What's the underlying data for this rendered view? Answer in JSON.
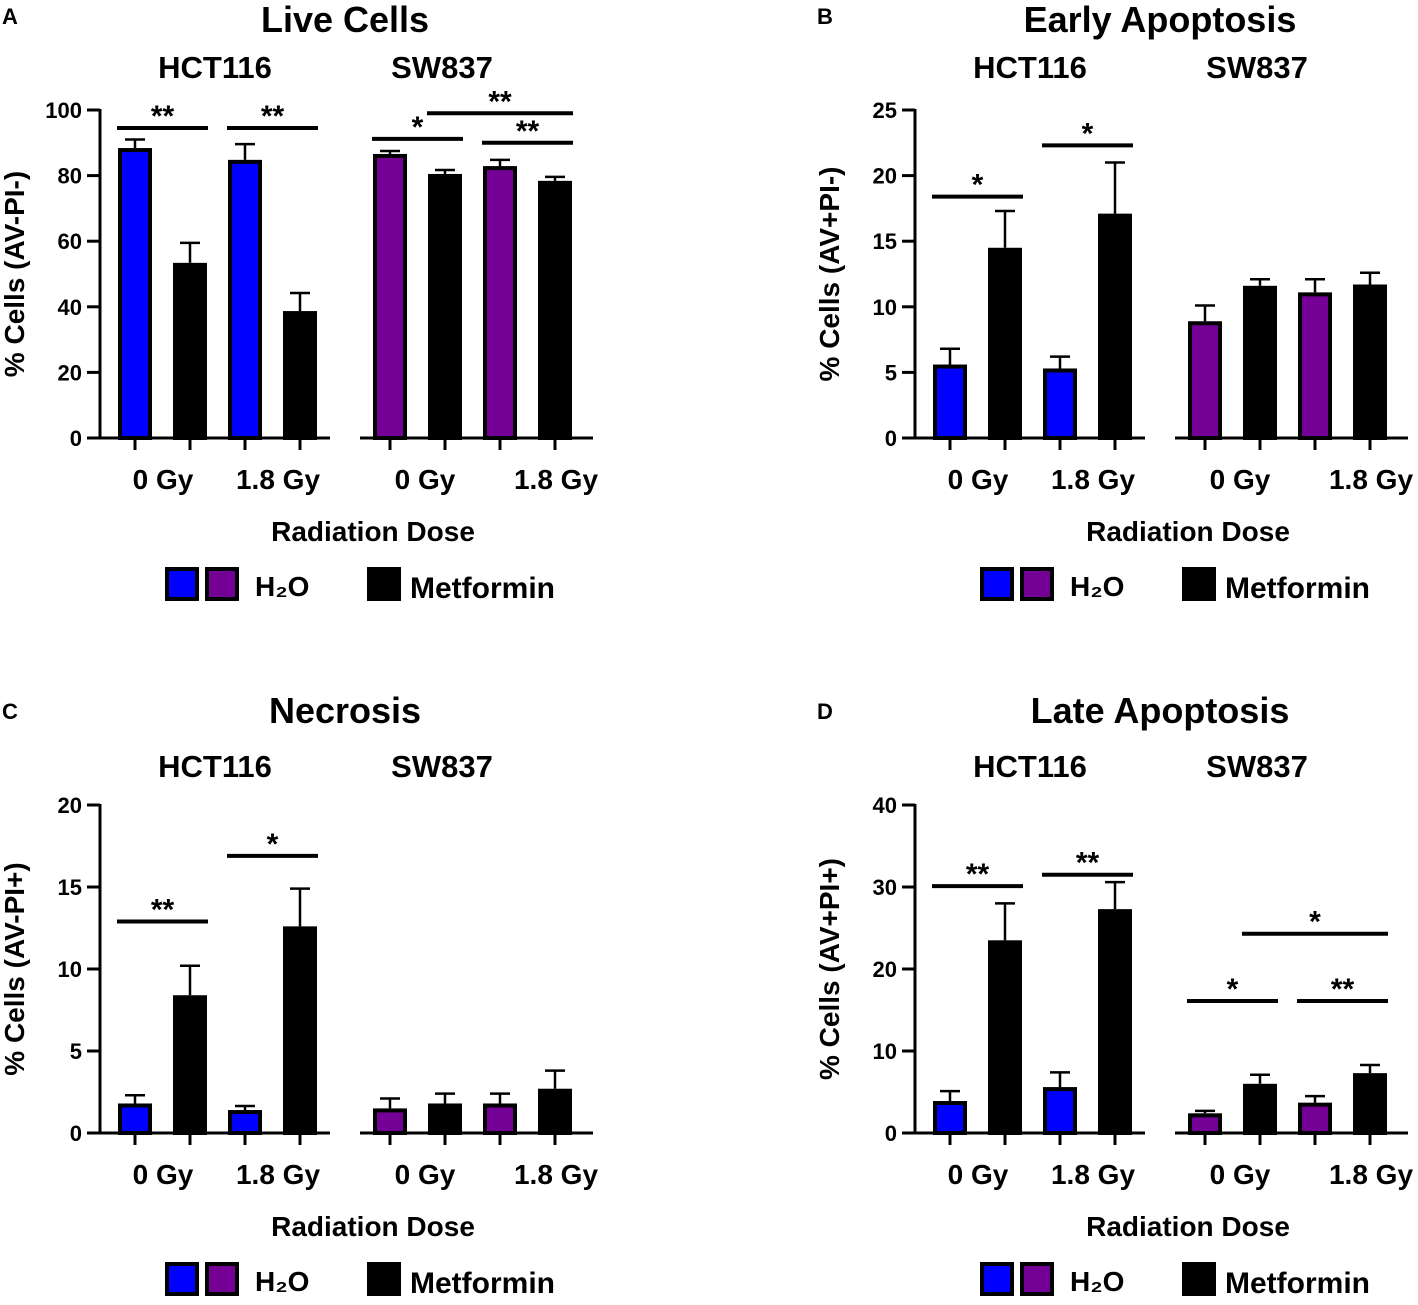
{
  "colors": {
    "hct_h2o": "#0000FF",
    "sw_h2o": "#740096",
    "metformin": "#000000"
  },
  "legend": {
    "h2o": "H₂O",
    "metformin": "Metformin"
  },
  "xlabel": "Radiation Dose",
  "groups": [
    "HCT116",
    "SW837"
  ],
  "dose_labels": [
    "0 Gy",
    "1.8 Gy",
    "0 Gy",
    "1.8 Gy"
  ],
  "chart_data": [
    {
      "type": "bar",
      "panel": "A",
      "title": "Live Cells",
      "ylabel": "% Cells (AV-PI-)",
      "xlabel": "Radiation Dose",
      "ylim": [
        0,
        100
      ],
      "yticks": [
        0,
        20,
        40,
        60,
        80,
        100
      ],
      "categories": [
        "HCT116 0 Gy H2O",
        "HCT116 0 Gy Metformin",
        "HCT116 1.8 Gy H2O",
        "HCT116 1.8 Gy Metformin",
        "SW837 0 Gy H2O",
        "SW837 0 Gy Metformin",
        "SW837 1.8 Gy H2O",
        "SW837 1.8 Gy Metformin"
      ],
      "values": [
        88.4,
        53.4,
        84.8,
        38.7,
        86.6,
        80.5,
        82.9,
        78.4
      ],
      "error_upper": [
        91.0,
        59.5,
        89.6,
        44.2,
        87.5,
        81.7,
        84.8,
        79.6
      ],
      "significance": [
        {
          "from": 0,
          "to": 1,
          "label": "**",
          "y": 94.5
        },
        {
          "from": 2,
          "to": 3,
          "label": "**",
          "y": 94.5
        },
        {
          "from": 4,
          "to": 5,
          "label": "*",
          "y": 91.2
        },
        {
          "from": 5,
          "to": 7,
          "label": "**",
          "y": 99
        },
        {
          "from": 6,
          "to": 7,
          "label": "**",
          "y": 90
        }
      ]
    },
    {
      "type": "bar",
      "panel": "B",
      "title": "Early Apoptosis",
      "ylabel": "% Cells (AV+PI-)",
      "xlabel": "Radiation Dose",
      "ylim": [
        0,
        25
      ],
      "yticks": [
        0,
        5,
        10,
        15,
        20,
        25
      ],
      "categories": [
        "HCT116 0 Gy H2O",
        "HCT116 0 Gy Metformin",
        "HCT116 1.8 Gy H2O",
        "HCT116 1.8 Gy Metformin",
        "SW837 0 Gy H2O",
        "SW837 0 Gy Metformin",
        "SW837 1.8 Gy H2O",
        "SW837 1.8 Gy Metformin"
      ],
      "values": [
        5.6,
        14.5,
        5.3,
        17.1,
        8.9,
        11.6,
        11.1,
        11.7
      ],
      "error_upper": [
        6.8,
        17.3,
        6.2,
        21.0,
        10.1,
        12.1,
        12.1,
        12.6
      ],
      "significance": [
        {
          "from": 0,
          "to": 1,
          "label": "*",
          "y": 18.4
        },
        {
          "from": 2,
          "to": 3,
          "label": "*",
          "y": 22.3
        }
      ]
    },
    {
      "type": "bar",
      "panel": "C",
      "title": "Necrosis",
      "ylabel": "% Cells (AV-PI+)",
      "xlabel": "Radiation Dose",
      "ylim": [
        0,
        20
      ],
      "yticks": [
        0,
        5,
        10,
        15,
        20
      ],
      "categories": [
        "HCT116 0 Gy H2O",
        "HCT116 0 Gy Metformin",
        "HCT116 1.8 Gy H2O",
        "HCT116 1.8 Gy Metformin",
        "SW837 0 Gy H2O",
        "SW837 0 Gy Metformin",
        "SW837 1.8 Gy H2O",
        "SW837 1.8 Gy Metformin"
      ],
      "values": [
        1.8,
        8.4,
        1.4,
        12.6,
        1.5,
        1.8,
        1.8,
        2.7
      ],
      "error_upper": [
        2.3,
        10.2,
        1.65,
        14.9,
        2.1,
        2.4,
        2.4,
        3.8
      ],
      "significance": [
        {
          "from": 0,
          "to": 1,
          "label": "**",
          "y": 12.9
        },
        {
          "from": 2,
          "to": 3,
          "label": "*",
          "y": 16.9
        }
      ]
    },
    {
      "type": "bar",
      "panel": "D",
      "title": "Late Apoptosis",
      "ylabel": "% Cells (AV+PI+)",
      "xlabel": "Radiation Dose",
      "ylim": [
        0,
        40
      ],
      "yticks": [
        0,
        10,
        20,
        30,
        40
      ],
      "categories": [
        "HCT116 0 Gy H2O",
        "HCT116 0 Gy Metformin",
        "HCT116 1.8 Gy H2O",
        "HCT116 1.8 Gy Metformin",
        "SW837 0 Gy H2O",
        "SW837 0 Gy Metformin",
        "SW837 1.8 Gy H2O",
        "SW837 1.8 Gy Metformin"
      ],
      "values": [
        3.9,
        23.5,
        5.6,
        27.3,
        2.4,
        6.0,
        3.7,
        7.3
      ],
      "error_upper": [
        5.1,
        28.0,
        7.4,
        30.6,
        2.7,
        7.1,
        4.5,
        8.3
      ],
      "significance": [
        {
          "from": 0,
          "to": 1,
          "label": "**",
          "y": 30.1
        },
        {
          "from": 2,
          "to": 3,
          "label": "**",
          "y": 31.5
        },
        {
          "from": 4,
          "to": 5,
          "label": "*",
          "y": 16.1
        },
        {
          "from": 5,
          "to": 7,
          "label": "*",
          "y": 24.3
        },
        {
          "from": 6,
          "to": 7,
          "label": "**",
          "y": 16.1
        }
      ]
    }
  ]
}
